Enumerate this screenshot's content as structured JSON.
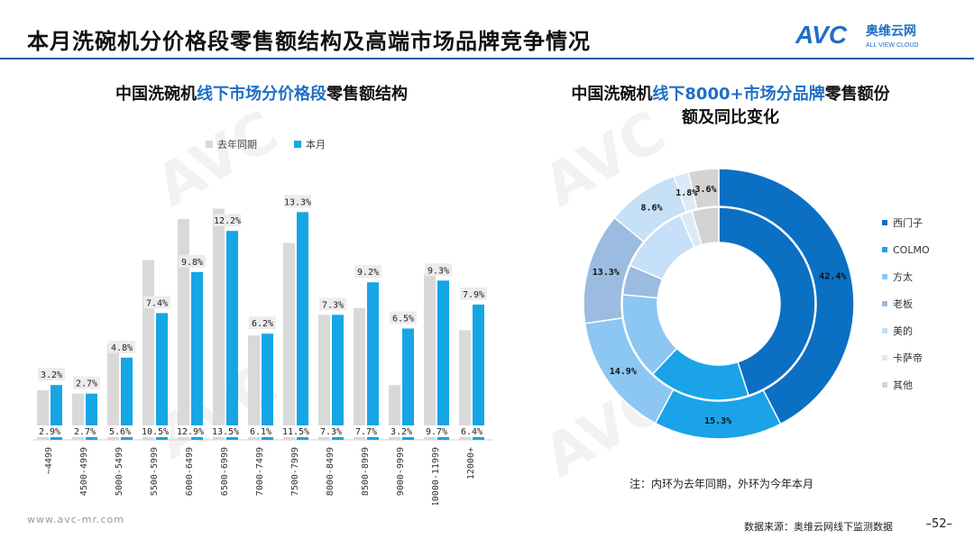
{
  "header": {
    "title": "本月洗碗机分价格段零售额结构及高端市场品牌竞争情况",
    "logo_mark": "AVC",
    "logo_cn": "奥维云网",
    "logo_en": "ALL VIEW CLOUD"
  },
  "left_title": {
    "part1": "中国洗碗机",
    "part2": "线下市场分价格段",
    "part3": "零售额结构"
  },
  "right_title": {
    "part1": "中国洗碗机",
    "part2": "线下8000+市场分品牌",
    "part3": "零售额份",
    "line2": "额及同比变化"
  },
  "colors": {
    "last_year": "#d9d9d9",
    "this_month": "#16a6e6",
    "accent": "#1f6fc5",
    "rule": "#0a5aa8"
  },
  "chart_data": [
    {
      "type": "bar",
      "categories": [
        "~4499",
        "4500-4999",
        "5000-5499",
        "5500-5999",
        "6000-6499",
        "6500-6999",
        "7000-7499",
        "7500-7999",
        "8000-8499",
        "8500-8999",
        "9000-9999",
        "10000-11999",
        "12000+"
      ],
      "series": [
        {
          "name": "去年同期",
          "values": [
            2.9,
            2.7,
            5.6,
            10.5,
            12.9,
            13.5,
            6.1,
            11.5,
            7.3,
            7.7,
            3.2,
            9.7,
            6.4
          ],
          "labels": [
            "2.9%",
            "2.7%",
            "5.6%",
            "10.5%",
            "12.9%",
            "13.5%",
            "6.1%",
            "11.5%",
            "7.3%",
            "7.7%",
            "3.2%",
            "9.7%",
            "6.4%"
          ]
        },
        {
          "name": "本月",
          "values": [
            3.2,
            2.7,
            4.8,
            7.4,
            9.8,
            12.2,
            6.2,
            13.3,
            7.3,
            9.2,
            6.5,
            9.3,
            7.9
          ],
          "labels": [
            "3.2%",
            "2.7%",
            "4.8%",
            "7.4%",
            "9.8%",
            "12.2%",
            "6.2%",
            "13.3%",
            "7.3%",
            "9.2%",
            "6.5%",
            "9.3%",
            "7.9%"
          ]
        }
      ],
      "ylim": [
        0,
        14
      ]
    },
    {
      "type": "pie",
      "categories": [
        "西门子",
        "COLMO",
        "方太",
        "老板",
        "美的",
        "卡萨帝",
        "其他"
      ],
      "series": [
        {
          "name": "本月",
          "values": [
            42.4,
            15.3,
            14.9,
            13.3,
            8.6,
            1.8,
            3.6
          ],
          "labels": [
            "42.4%",
            "15.3%",
            "14.9%",
            "13.3%",
            "8.6%",
            "1.8%",
            "3.6%"
          ]
        },
        {
          "name": "去年同期",
          "values": [
            45.0,
            17.0,
            14.5,
            5.0,
            12.0,
            2.0,
            4.5
          ]
        }
      ],
      "colors": [
        "#0b6fc4",
        "#1aa3e8",
        "#8cc6f2",
        "#9bbbe0",
        "#c5e0f7",
        "#dceaf7",
        "#d3d3d3"
      ]
    }
  ],
  "note": "注：内环为去年同期，外环为今年本月",
  "source": "数据来源：奥维云网线下监测数据",
  "page_number": "–52–",
  "footer_url": "www.avc-mr.com"
}
